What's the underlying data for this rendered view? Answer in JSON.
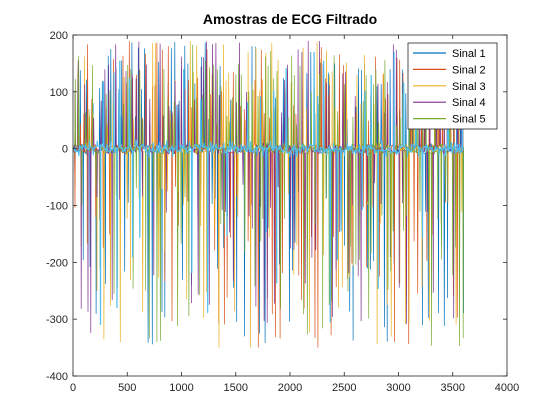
{
  "chart_data": {
    "type": "line",
    "title": "Amostras de ECG Filtrado",
    "xlabel": "",
    "ylabel": "",
    "xlim": [
      0,
      4000
    ],
    "ylim": [
      -400,
      200
    ],
    "x_ticks": [
      0,
      500,
      1000,
      1500,
      2000,
      2500,
      3000,
      3500,
      4000
    ],
    "y_ticks": [
      -400,
      -300,
      -200,
      -100,
      0,
      100,
      200
    ],
    "x_tick_labels": [
      "0",
      "500",
      "1000",
      "1500",
      "2000",
      "2500",
      "3000",
      "3500",
      "4000"
    ],
    "y_tick_labels": [
      "-400",
      "-300",
      "-200",
      "-100",
      "0",
      "100",
      "200"
    ],
    "grid": false,
    "legend_position": "top-right",
    "x_range_data": [
      1,
      3600
    ],
    "series": [
      {
        "name": "Sinal 1",
        "color": "#0072BD"
      },
      {
        "name": "Sinal 2",
        "color": "#D95319"
      },
      {
        "name": "Sinal 3",
        "color": "#EDB120"
      },
      {
        "name": "Sinal 4",
        "color": "#7E2F8E"
      },
      {
        "name": "Sinal 5",
        "color": "#77AC30"
      },
      {
        "name": "",
        "color": "#4DBEEE",
        "legend": false
      }
    ]
  }
}
